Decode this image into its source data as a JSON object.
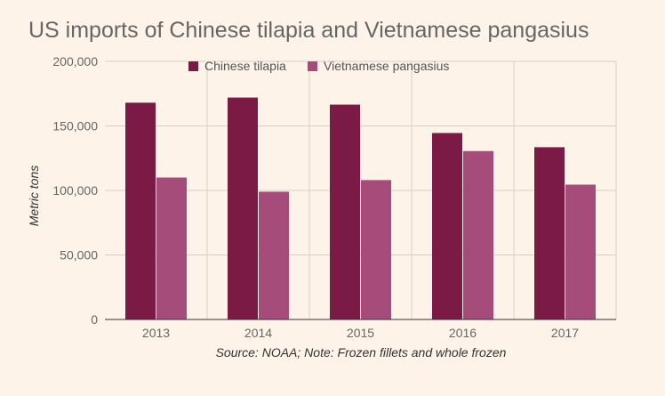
{
  "chart_data": {
    "type": "bar",
    "title": "US imports of Chinese tilapia and Vietnamese pangasius",
    "xlabel": "",
    "ylabel": "Metric tons",
    "source_note": "Source: NOAA; Note: Frozen fillets and whole frozen",
    "categories": [
      "2013",
      "2014",
      "2015",
      "2016",
      "2017"
    ],
    "series": [
      {
        "name": "Chinese tilapia",
        "color": "#7a1a45",
        "values": [
          168000,
          172000,
          166500,
          144500,
          133500
        ]
      },
      {
        "name": "Vietnamese pangasius",
        "color": "#a54c7a",
        "values": [
          110000,
          99000,
          108000,
          130500,
          104500
        ]
      }
    ],
    "ylim": [
      0,
      200000
    ],
    "yticks": [
      0,
      50000,
      100000,
      150000,
      200000
    ],
    "ytick_labels": [
      "0",
      "50,000",
      "100,000",
      "150,000",
      "200,000"
    ],
    "grid": true,
    "legend_position": "top"
  }
}
